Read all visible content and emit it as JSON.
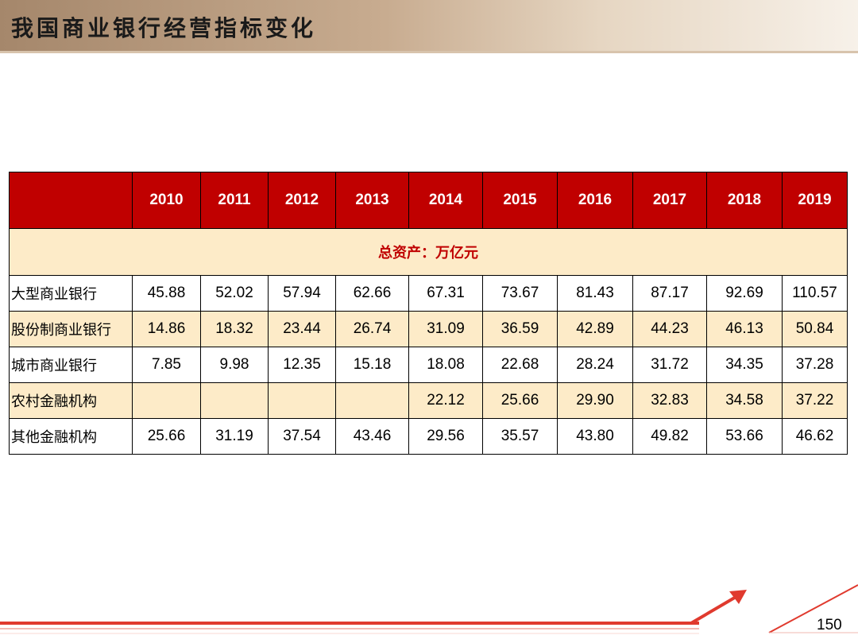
{
  "slide": {
    "title": "我国商业银行经营指标变化",
    "page_number": "150"
  },
  "table": {
    "columns": [
      "",
      "2010",
      "2011",
      "2012",
      "2013",
      "2014",
      "2015",
      "2016",
      "2017",
      "2018",
      "2019"
    ],
    "section_label": "总资产：万亿元",
    "rows": [
      {
        "label": "大型商业银行",
        "values": [
          "45.88",
          "52.02",
          "57.94",
          "62.66",
          "67.31",
          "73.67",
          "81.43",
          "87.17",
          "92.69",
          "110.57"
        ]
      },
      {
        "label": "股份制商业银行",
        "values": [
          "14.86",
          "18.32",
          "23.44",
          "26.74",
          "31.09",
          "36.59",
          "42.89",
          "44.23",
          "46.13",
          "50.84"
        ]
      },
      {
        "label": "城市商业银行",
        "values": [
          "7.85",
          "9.98",
          "12.35",
          "15.18",
          "18.08",
          "22.68",
          "28.24",
          "31.72",
          "34.35",
          "37.28"
        ]
      },
      {
        "label": "农村金融机构",
        "values": [
          "",
          "",
          "",
          "",
          "22.12",
          "25.66",
          "29.90",
          "32.83",
          "34.58",
          "37.22"
        ]
      },
      {
        "label": "其他金融机构",
        "values": [
          "25.66",
          "31.19",
          "37.54",
          "43.46",
          "29.56",
          "35.57",
          "43.80",
          "49.82",
          "53.66",
          "46.62"
        ]
      }
    ]
  },
  "colors": {
    "header_bg": "#c00000",
    "stripe_bg": "#fdebc8",
    "accent_red": "#e03a2e"
  },
  "icons": {
    "decoration": "red-arrow-swoosh-icon"
  }
}
